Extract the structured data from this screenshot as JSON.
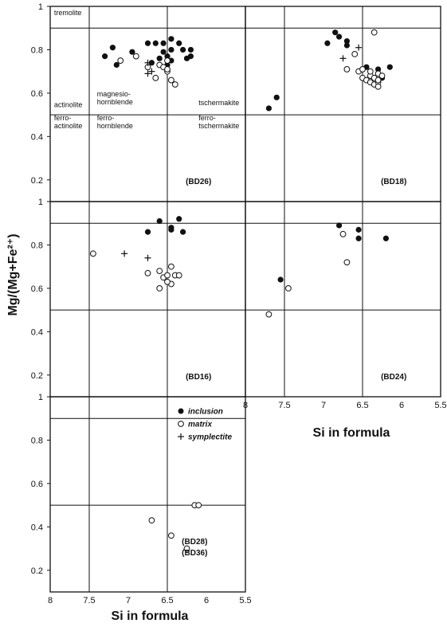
{
  "chart_data": {
    "type": "scatter",
    "title": "",
    "xlabel": "Si in formula",
    "ylabel": "Mg/(Mg+Fe²⁺)",
    "xlim": [
      8,
      5.5
    ],
    "ylim": [
      0.1,
      1
    ],
    "x_ticks": [
      "8",
      "7.5",
      "7",
      "6.5",
      "6",
      "5.5"
    ],
    "y_ticks": [
      "0.2",
      "0.4",
      "0.6",
      "0.8",
      "1"
    ],
    "grid": false,
    "legend": {
      "placement": "inside-bottom-left-panel",
      "entries": [
        {
          "name": "inclusion",
          "marker": "filled-circle"
        },
        {
          "name": "matrix",
          "marker": "open-circle"
        },
        {
          "name": "symplectite",
          "marker": "plus"
        }
      ]
    },
    "field_boundaries": {
      "si_lines": [
        7.5,
        6.5
      ],
      "mg_lines": [
        0.5,
        0.9
      ],
      "field_labels": [
        "tremolite",
        "actinolite",
        "magnesio-\nhornblende",
        "tschermakite",
        "ferro-\nactinolite",
        "ferro-\nhornblende",
        "ferro-\ntschermakite"
      ]
    },
    "panels": [
      {
        "name": "(BD26)",
        "series": [
          {
            "name": "inclusion",
            "points": [
              [
                7.3,
                0.77
              ],
              [
                7.2,
                0.81
              ],
              [
                7.15,
                0.73
              ],
              [
                6.95,
                0.79
              ],
              [
                6.75,
                0.83
              ],
              [
                6.7,
                0.74
              ],
              [
                6.65,
                0.83
              ],
              [
                6.6,
                0.76
              ],
              [
                6.55,
                0.83
              ],
              [
                6.55,
                0.79
              ],
              [
                6.5,
                0.77
              ],
              [
                6.5,
                0.73
              ],
              [
                6.45,
                0.85
              ],
              [
                6.45,
                0.8
              ],
              [
                6.45,
                0.75
              ],
              [
                6.35,
                0.83
              ],
              [
                6.3,
                0.8
              ],
              [
                6.25,
                0.76
              ],
              [
                6.2,
                0.8
              ],
              [
                6.2,
                0.77
              ]
            ]
          },
          {
            "name": "matrix",
            "points": [
              [
                7.1,
                0.75
              ],
              [
                6.9,
                0.77
              ],
              [
                6.75,
                0.72
              ],
              [
                6.65,
                0.67
              ],
              [
                6.6,
                0.73
              ],
              [
                6.55,
                0.72
              ],
              [
                6.5,
                0.7
              ],
              [
                6.5,
                0.75
              ],
              [
                6.45,
                0.66
              ],
              [
                6.5,
                0.71
              ],
              [
                6.4,
                0.64
              ]
            ]
          },
          {
            "name": "symplectite",
            "points": [
              [
                6.75,
                0.74
              ],
              [
                6.7,
                0.7
              ],
              [
                6.75,
                0.69
              ]
            ]
          }
        ]
      },
      {
        "name": "(BD18)",
        "series": [
          {
            "name": "inclusion",
            "points": [
              [
                7.7,
                0.53
              ],
              [
                7.6,
                0.58
              ],
              [
                6.95,
                0.83
              ],
              [
                6.85,
                0.88
              ],
              [
                6.8,
                0.86
              ],
              [
                6.7,
                0.84
              ],
              [
                6.7,
                0.82
              ],
              [
                6.55,
                0.7
              ],
              [
                6.45,
                0.72
              ],
              [
                6.3,
                0.71
              ],
              [
                6.25,
                0.67
              ],
              [
                6.15,
                0.72
              ]
            ]
          },
          {
            "name": "matrix",
            "points": [
              [
                6.7,
                0.71
              ],
              [
                6.6,
                0.78
              ],
              [
                6.55,
                0.7
              ],
              [
                6.5,
                0.67
              ],
              [
                6.5,
                0.71
              ],
              [
                6.45,
                0.66
              ],
              [
                6.4,
                0.68
              ],
              [
                6.4,
                0.65
              ],
              [
                6.4,
                0.7
              ],
              [
                6.35,
                0.67
              ],
              [
                6.35,
                0.64
              ],
              [
                6.3,
                0.65
              ],
              [
                6.35,
                0.88
              ],
              [
                6.3,
                0.63
              ],
              [
                6.3,
                0.69
              ],
              [
                6.25,
                0.68
              ],
              [
                6.3,
                0.66
              ]
            ]
          },
          {
            "name": "symplectite",
            "points": [
              [
                6.75,
                0.76
              ],
              [
                6.55,
                0.81
              ]
            ]
          }
        ]
      },
      {
        "name": "(BD16)",
        "series": [
          {
            "name": "inclusion",
            "points": [
              [
                6.75,
                0.86
              ],
              [
                6.6,
                0.91
              ],
              [
                6.45,
                0.88
              ],
              [
                6.45,
                0.87
              ],
              [
                6.35,
                0.92
              ],
              [
                6.3,
                0.86
              ]
            ]
          },
          {
            "name": "matrix",
            "points": [
              [
                7.45,
                0.76
              ],
              [
                6.75,
                0.67
              ],
              [
                6.6,
                0.68
              ],
              [
                6.6,
                0.6
              ],
              [
                6.55,
                0.65
              ],
              [
                6.5,
                0.66
              ],
              [
                6.45,
                0.7
              ],
              [
                6.45,
                0.62
              ],
              [
                6.4,
                0.66
              ],
              [
                6.35,
                0.66
              ],
              [
                6.5,
                0.63
              ]
            ]
          },
          {
            "name": "symplectite",
            "points": [
              [
                7.05,
                0.76
              ],
              [
                6.75,
                0.74
              ]
            ]
          }
        ]
      },
      {
        "name": "(BD24)",
        "series": [
          {
            "name": "inclusion",
            "points": [
              [
                7.55,
                0.64
              ],
              [
                6.8,
                0.89
              ],
              [
                6.55,
                0.83
              ],
              [
                6.55,
                0.87
              ],
              [
                6.2,
                0.83
              ]
            ]
          },
          {
            "name": "matrix",
            "points": [
              [
                7.7,
                0.48
              ],
              [
                7.45,
                0.6
              ],
              [
                6.75,
                0.85
              ],
              [
                6.7,
                0.72
              ]
            ]
          },
          {
            "name": "symplectite",
            "points": []
          }
        ]
      },
      {
        "name": "(BD28)\n(BD36)",
        "series": [
          {
            "name": "inclusion",
            "points": []
          },
          {
            "name": "matrix",
            "points": [
              [
                6.7,
                0.43
              ],
              [
                6.45,
                0.36
              ],
              [
                6.25,
                0.3
              ],
              [
                6.15,
                0.5
              ],
              [
                6.1,
                0.5
              ]
            ]
          },
          {
            "name": "symplectite",
            "points": []
          }
        ]
      }
    ]
  }
}
